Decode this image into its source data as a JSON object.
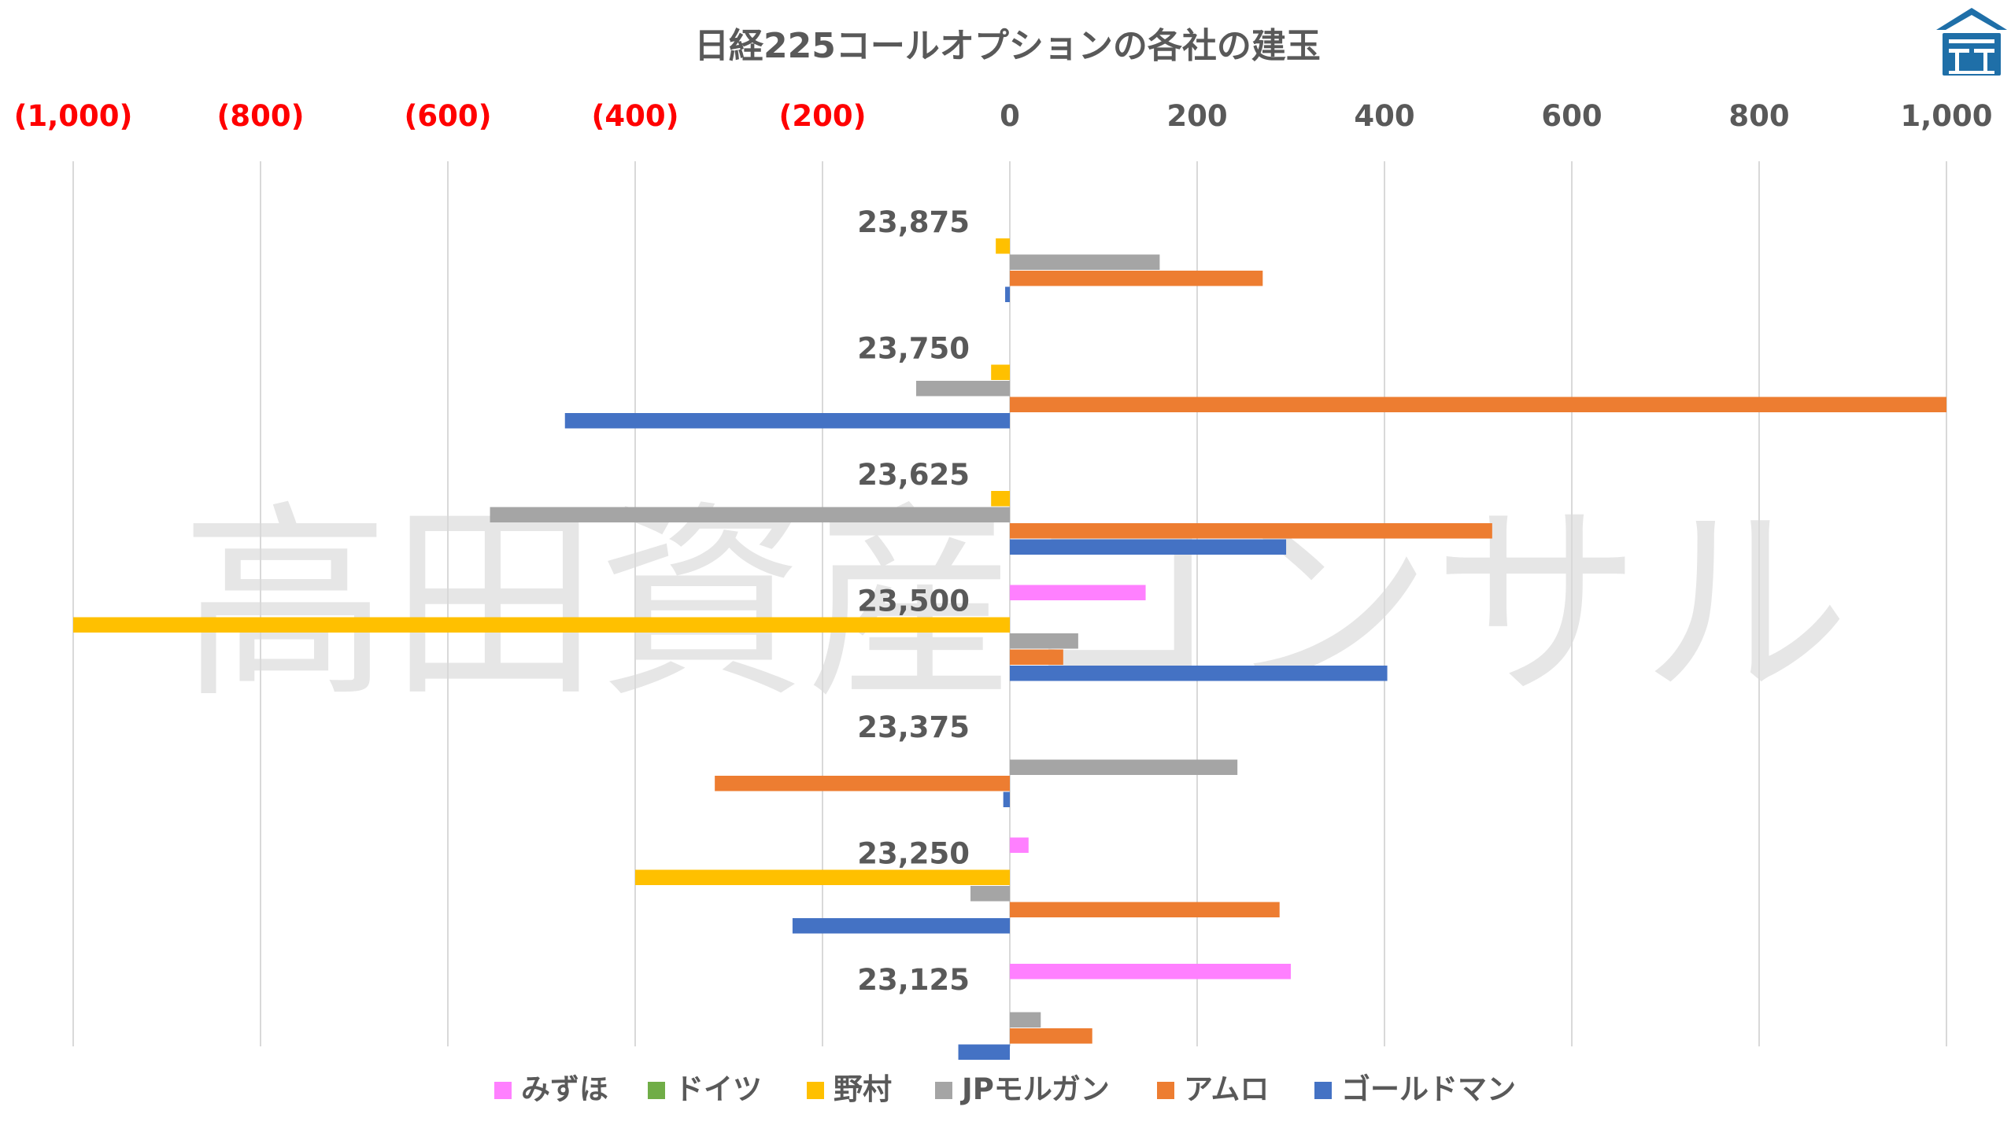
{
  "chart_data": {
    "type": "bar",
    "orientation": "horizontal",
    "title": "日経225コールオプションの各社の建玉",
    "x_range": [
      -1000,
      1000
    ],
    "x_ticks": [
      -1000,
      -800,
      -600,
      -400,
      -200,
      0,
      200,
      400,
      600,
      800,
      1000
    ],
    "x_tick_labels": [
      "(1,000)",
      "(800)",
      "(600)",
      "(400)",
      "(200)",
      "0",
      "200",
      "400",
      "600",
      "800",
      "1,000"
    ],
    "negative_tick_color": "#ff0000",
    "x_axis_position": "top",
    "grid": true,
    "legend_position": "bottom",
    "categories": [
      "23,875",
      "23,750",
      "23,625",
      "23,500",
      "23,375",
      "23,250",
      "23,125"
    ],
    "series": [
      {
        "name": "みずほ",
        "color": "#ff80ff",
        "values": [
          0,
          0,
          0,
          145,
          0,
          20,
          300
        ]
      },
      {
        "name": "ドイツ",
        "color": "#70ad47",
        "values": [
          0,
          0,
          0,
          0,
          0,
          0,
          0
        ]
      },
      {
        "name": "野村",
        "color": "#ffc000",
        "values": [
          -15,
          -20,
          -20,
          -1000,
          0,
          -400,
          0
        ]
      },
      {
        "name": "JPモルガン",
        "color": "#a5a5a5",
        "values": [
          160,
          -100,
          -555,
          73,
          243,
          -42,
          33
        ]
      },
      {
        "name": "アムロ",
        "color": "#ed7d31",
        "values": [
          270,
          1000,
          515,
          57,
          -315,
          288,
          88
        ]
      },
      {
        "name": "ゴールドマン",
        "color": "#4472c4",
        "values": [
          -5,
          -475,
          295,
          403,
          -7,
          -232,
          -55
        ]
      }
    ]
  },
  "watermark": "高田資産コンサル",
  "logo": {
    "name": "house-logo",
    "color": "#1f6fa8"
  }
}
